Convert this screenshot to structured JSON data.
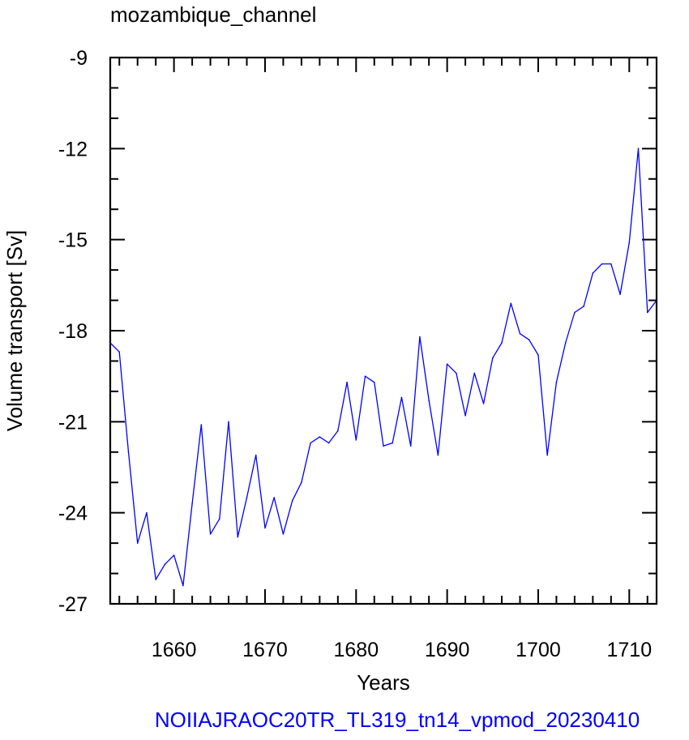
{
  "chart_data": {
    "type": "line",
    "title": "mozambique_channel",
    "xlabel": "Years",
    "ylabel": "Volume transport [Sv]",
    "footer": "NOIIAJRAOC20TR_TL319_tn14_vpmod_20230410",
    "xlim": [
      1653,
      1713
    ],
    "ylim": [
      -27,
      -9
    ],
    "x_ticks": [
      1660,
      1670,
      1680,
      1690,
      1700,
      1710
    ],
    "y_ticks": [
      -27,
      -24,
      -21,
      -18,
      -15,
      -12,
      -9
    ],
    "grid": false,
    "line_color": "#0000ff",
    "footer_color": "#0000ff",
    "series": [
      {
        "x": [
          1653,
          1654,
          1655,
          1656,
          1657,
          1658,
          1659,
          1660,
          1661,
          1662,
          1663,
          1664,
          1665,
          1666,
          1667,
          1668,
          1669,
          1670,
          1671,
          1672,
          1673,
          1674,
          1675,
          1676,
          1677,
          1678,
          1679,
          1680,
          1681,
          1682,
          1683,
          1684,
          1685,
          1686,
          1687,
          1688,
          1689,
          1690,
          1691,
          1692,
          1693,
          1694,
          1695,
          1696,
          1697,
          1698,
          1699,
          1700,
          1701,
          1702,
          1703,
          1704,
          1705,
          1706,
          1707,
          1708,
          1709,
          1710,
          1711,
          1712,
          1713
        ],
        "values": [
          -18.4,
          -18.7,
          -22.0,
          -25.0,
          -24.0,
          -26.2,
          -25.7,
          -25.4,
          -26.4,
          -23.7,
          -21.1,
          -24.7,
          -24.2,
          -21.0,
          -24.8,
          -23.5,
          -22.1,
          -24.5,
          -23.5,
          -24.7,
          -23.6,
          -23.0,
          -21.7,
          -21.5,
          -21.7,
          -21.3,
          -19.7,
          -21.6,
          -19.5,
          -19.7,
          -21.8,
          -21.7,
          -20.2,
          -21.8,
          -18.2,
          -20.3,
          -22.1,
          -19.1,
          -19.4,
          -20.8,
          -19.4,
          -20.4,
          -18.9,
          -18.4,
          -17.1,
          -18.1,
          -18.3,
          -18.8,
          -22.1,
          -19.7,
          -18.4,
          -17.4,
          -17.2,
          -16.1,
          -15.8,
          -15.8,
          -16.8,
          -15.1,
          -12.0,
          -17.4,
          -17.0
        ]
      }
    ]
  }
}
